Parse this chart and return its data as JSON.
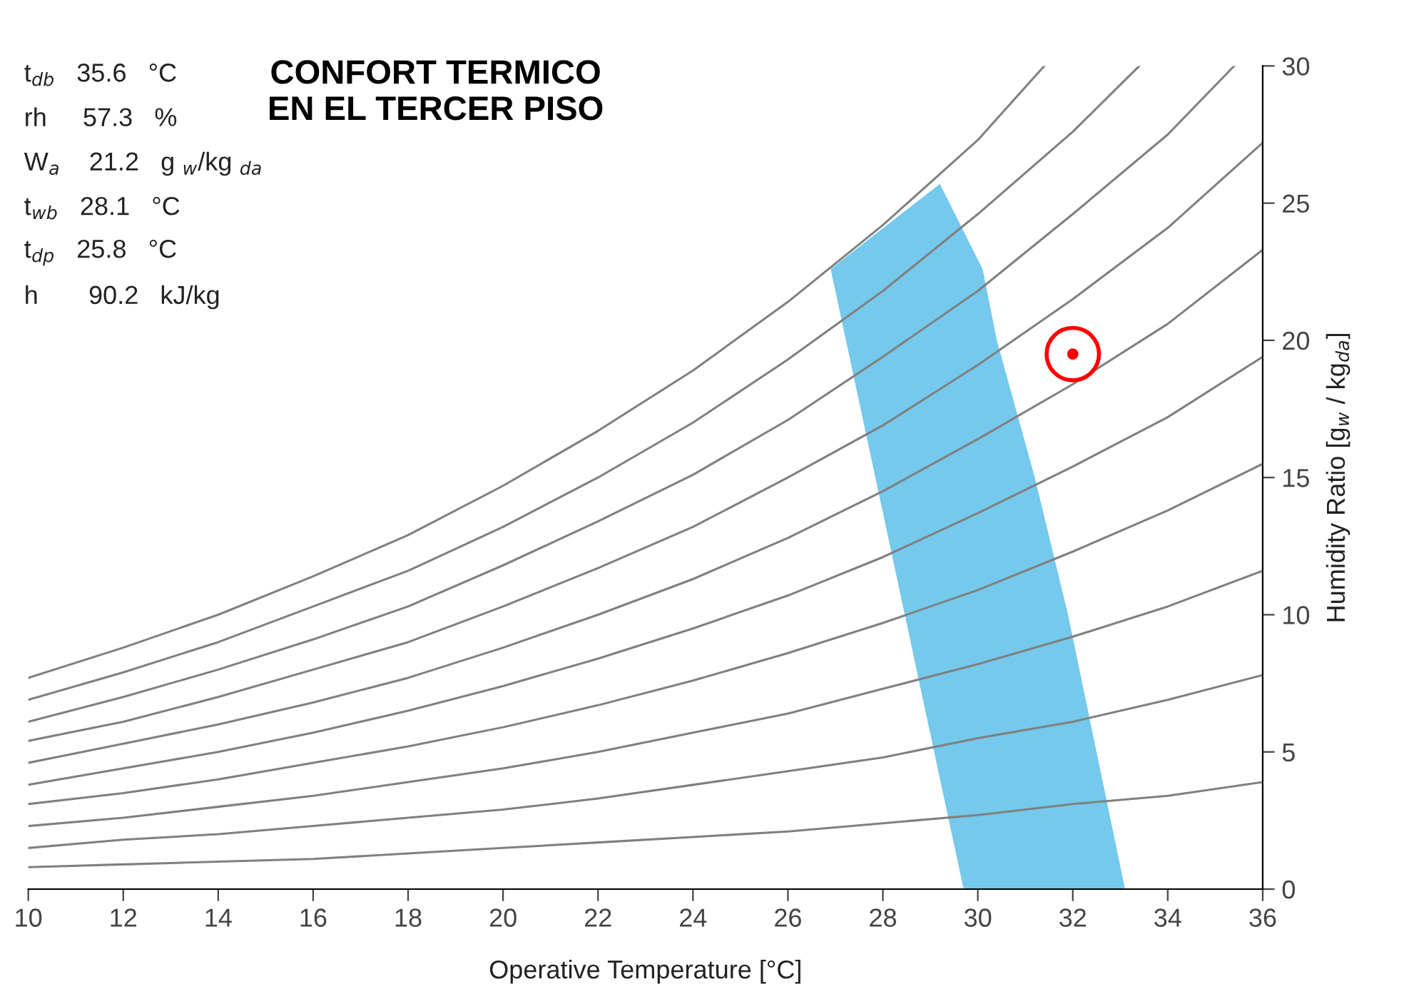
{
  "chart_data": {
    "type": "line",
    "title": "CONFORT TERMICO\nEN EL TERCER PISO",
    "xlabel": "Operative Temperature [°C]",
    "ylabel": "Humidity Ratio [g$_{w}$ / kg$_{da}$]",
    "annotations": [
      "t$_{db}$   35.6   °C",
      "rh     57.3   %",
      "W$_{a}$    21.2   g $_{w}$/kg $_{da}$",
      "t$_{wb}$   28.1   °C",
      "t$_{dp}$   25.8   °C",
      "h       90.2   kJ/kg"
    ],
    "xlim": [
      10,
      36
    ],
    "xticks": [
      10,
      12,
      14,
      16,
      18,
      20,
      22,
      24,
      26,
      28,
      30,
      32,
      34,
      36
    ],
    "ylim": [
      0,
      30
    ],
    "yticks": [
      0,
      5,
      10,
      15,
      20,
      25,
      30
    ],
    "grid": false,
    "series": [
      {
        "type": "area",
        "color": "#74c9ec",
        "x": [
          26.9,
          29.2,
          30.1,
          30.4,
          31.2,
          31.9,
          33.1,
          29.7,
          26.9
        ],
        "values": [
          22.6,
          25.7,
          22.6,
          20,
          15,
          10,
          0,
          0,
          22.6
        ]
      },
      {
        "color": "#808080",
        "x": [
          10,
          12,
          14,
          16,
          18,
          20,
          22,
          24,
          26,
          28,
          30,
          31.4
        ],
        "values": [
          7.7,
          8.8,
          10.0,
          11.4,
          12.9,
          14.7,
          16.7,
          18.9,
          21.4,
          24.2,
          27.3,
          30
        ]
      },
      {
        "color": "#808080",
        "x": [
          10,
          12,
          14,
          16,
          18,
          20,
          22,
          24,
          26,
          28,
          30,
          32,
          33.4
        ],
        "values": [
          6.9,
          7.9,
          9.0,
          10.3,
          11.6,
          13.2,
          15.0,
          17.0,
          19.3,
          21.8,
          24.6,
          27.6,
          30
        ]
      },
      {
        "color": "#808080",
        "x": [
          10,
          12,
          14,
          16,
          18,
          20,
          22,
          24,
          26,
          28,
          30,
          32,
          34,
          35.4
        ],
        "values": [
          6.1,
          7.0,
          8.0,
          9.1,
          10.3,
          11.8,
          13.4,
          15.1,
          17.1,
          19.4,
          21.8,
          24.6,
          27.5,
          30
        ]
      },
      {
        "color": "#808080",
        "x": [
          10,
          12,
          14,
          16,
          18,
          20,
          22,
          24,
          26,
          28,
          30,
          32,
          34,
          36
        ],
        "values": [
          5.4,
          6.1,
          7.0,
          8.0,
          9.0,
          10.3,
          11.7,
          13.2,
          15.0,
          16.9,
          19.1,
          21.5,
          24.1,
          27.2
        ]
      },
      {
        "color": "#808080",
        "x": [
          10,
          12,
          14,
          16,
          18,
          20,
          22,
          24,
          26,
          28,
          30,
          32,
          34,
          36
        ],
        "values": [
          4.6,
          5.3,
          6.0,
          6.8,
          7.7,
          8.8,
          10.0,
          11.3,
          12.8,
          14.5,
          16.4,
          18.4,
          20.6,
          23.3
        ]
      },
      {
        "color": "#808080",
        "x": [
          10,
          12,
          14,
          16,
          18,
          20,
          22,
          24,
          26,
          28,
          30,
          32,
          34,
          36
        ],
        "values": [
          3.8,
          4.4,
          5.0,
          5.7,
          6.5,
          7.4,
          8.4,
          9.5,
          10.7,
          12.1,
          13.7,
          15.4,
          17.2,
          19.4
        ]
      },
      {
        "color": "#808080",
        "x": [
          10,
          12,
          14,
          16,
          18,
          20,
          22,
          24,
          26,
          28,
          30,
          32,
          34,
          36
        ],
        "values": [
          3.1,
          3.5,
          4.0,
          4.6,
          5.2,
          5.9,
          6.7,
          7.6,
          8.6,
          9.7,
          10.9,
          12.3,
          13.8,
          15.5
        ]
      },
      {
        "color": "#808080",
        "x": [
          10,
          12,
          14,
          16,
          18,
          20,
          22,
          24,
          26,
          28,
          30,
          32,
          34,
          36
        ],
        "values": [
          2.3,
          2.6,
          3.0,
          3.4,
          3.9,
          4.4,
          5.0,
          5.7,
          6.4,
          7.3,
          8.2,
          9.2,
          10.3,
          11.6
        ]
      },
      {
        "color": "#808080",
        "x": [
          10,
          12,
          14,
          16,
          18,
          20,
          22,
          24,
          26,
          28,
          30,
          32,
          34,
          36
        ],
        "values": [
          1.5,
          1.8,
          2.0,
          2.3,
          2.6,
          2.9,
          3.3,
          3.8,
          4.3,
          4.8,
          5.5,
          6.1,
          6.9,
          7.8
        ]
      },
      {
        "color": "#808080",
        "x": [
          10,
          12,
          14,
          16,
          18,
          20,
          22,
          24,
          26,
          28,
          30,
          32,
          34,
          36
        ],
        "values": [
          0.8,
          0.9,
          1.0,
          1.1,
          1.3,
          1.5,
          1.7,
          1.9,
          2.1,
          2.4,
          2.7,
          3.1,
          3.4,
          3.9
        ]
      },
      {
        "type": "scatter",
        "color": "#ff0000",
        "marker": "circle",
        "x": [
          32
        ],
        "values": [
          19.5
        ]
      }
    ]
  }
}
